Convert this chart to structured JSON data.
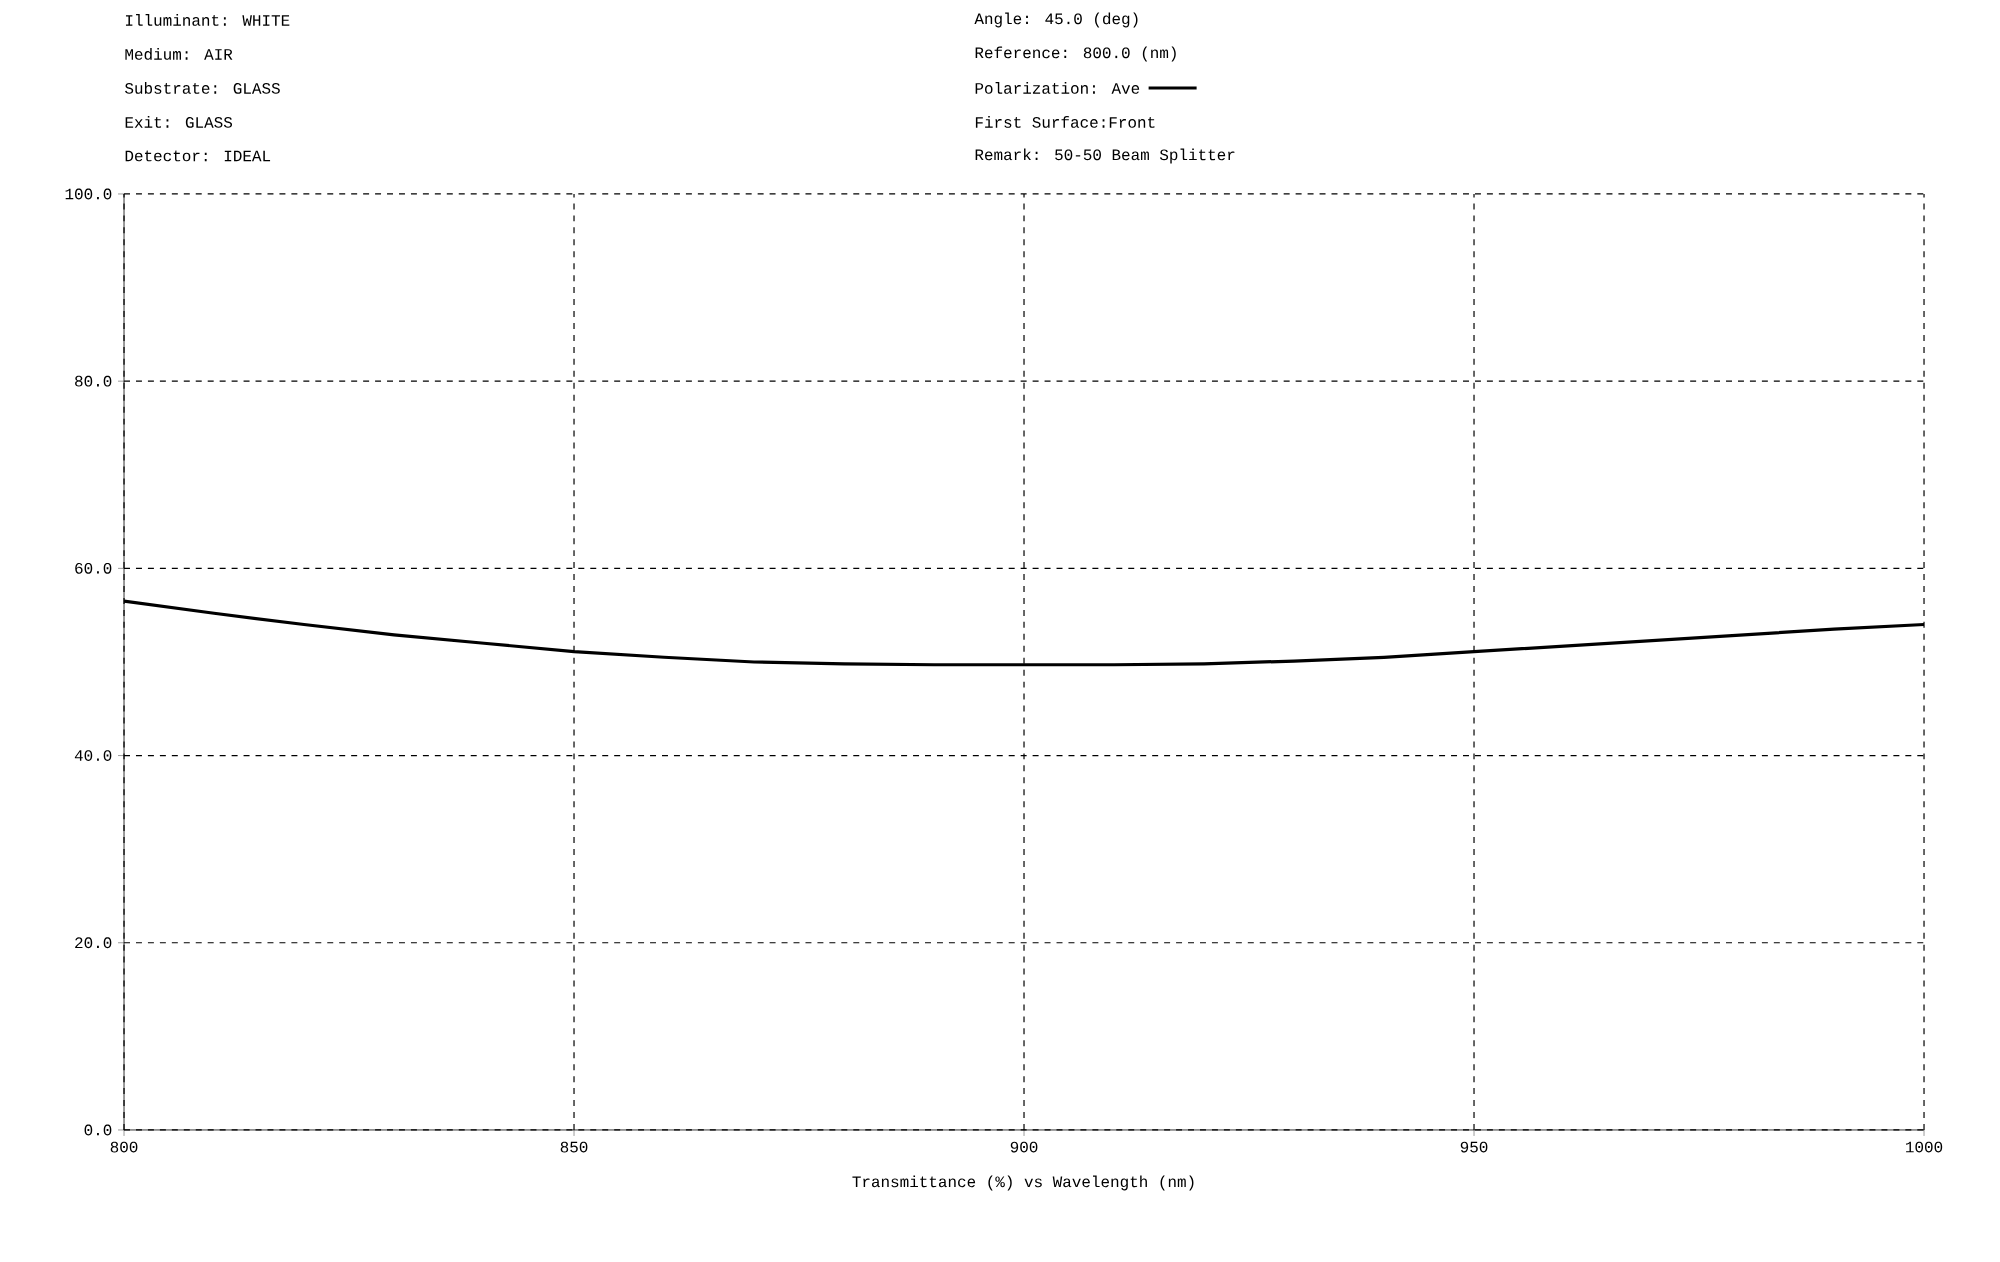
{
  "chart_data": {
    "type": "line",
    "xlabel": "Transmittance (%)  vs  Wavelength (nm)",
    "legend_title": "Polarization:",
    "legend": "top",
    "grid": true,
    "marker": "none",
    "line_style": "solid",
    "annotations": [
      "Illuminant: WHITE",
      "Medium: AIR",
      "Substrate: GLASS",
      "Exit: GLASS",
      "Detector: IDEAL",
      "Angle: 45.0 (deg)",
      "Reference: 800.0 (nm)",
      "First Surface:Front",
      "Remark: 50-50 Beam Splitter"
    ],
    "x": [
      800,
      810,
      820,
      830,
      840,
      850,
      860,
      870,
      880,
      890,
      900,
      910,
      920,
      930,
      940,
      950,
      960,
      970,
      980,
      990,
      1000
    ],
    "series": [
      {
        "name": "Ave",
        "color": "#000000",
        "values": [
          56.5,
          55.2,
          54.0,
          52.9,
          52.0,
          51.1,
          50.5,
          50.0,
          49.8,
          49.7,
          49.7,
          49.7,
          49.8,
          50.1,
          50.5,
          51.1,
          51.7,
          52.3,
          52.9,
          53.5,
          54.0
        ]
      }
    ],
    "xlim": [
      800,
      1000
    ],
    "xticks": [
      800,
      850,
      900,
      950,
      1000
    ],
    "ylim": [
      0,
      100
    ],
    "yticks": [
      {
        "value": 0,
        "label": "0.0"
      },
      {
        "value": 20,
        "label": "20.0"
      },
      {
        "value": 40,
        "label": "40.0"
      },
      {
        "value": 60,
        "label": "60.0"
      },
      {
        "value": 80,
        "label": "80.0"
      },
      {
        "value": 100,
        "label": "100.0"
      }
    ]
  }
}
